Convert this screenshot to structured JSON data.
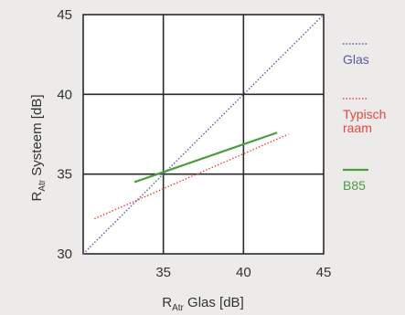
{
  "chart_data": {
    "type": "line",
    "title": "",
    "xlabel": {
      "main": "R",
      "sub": "Atr",
      "rest": " Glas [dB]"
    },
    "ylabel": {
      "main": "R",
      "sub": "Atr",
      "rest": " Systeem [dB]"
    },
    "xlim": [
      30,
      45
    ],
    "ylim": [
      30,
      45
    ],
    "xticks": [
      35,
      40,
      45
    ],
    "yticks": [
      30,
      35,
      40,
      45
    ],
    "grid": true,
    "legend_position": "right",
    "series": [
      {
        "name": "Glas",
        "color": "#5a5aa6",
        "style": "dotted",
        "x": [
          30,
          45
        ],
        "y": [
          30,
          45
        ]
      },
      {
        "name": "Typisch\nraam",
        "color": "#e0473f",
        "style": "dotted",
        "x": [
          30.7,
          42.8
        ],
        "y": [
          32.2,
          37.5
        ]
      },
      {
        "name": "B85",
        "color": "#4a9e3e",
        "style": "solid",
        "x": [
          33.2,
          42.1
        ],
        "y": [
          34.5,
          37.6
        ]
      }
    ]
  }
}
